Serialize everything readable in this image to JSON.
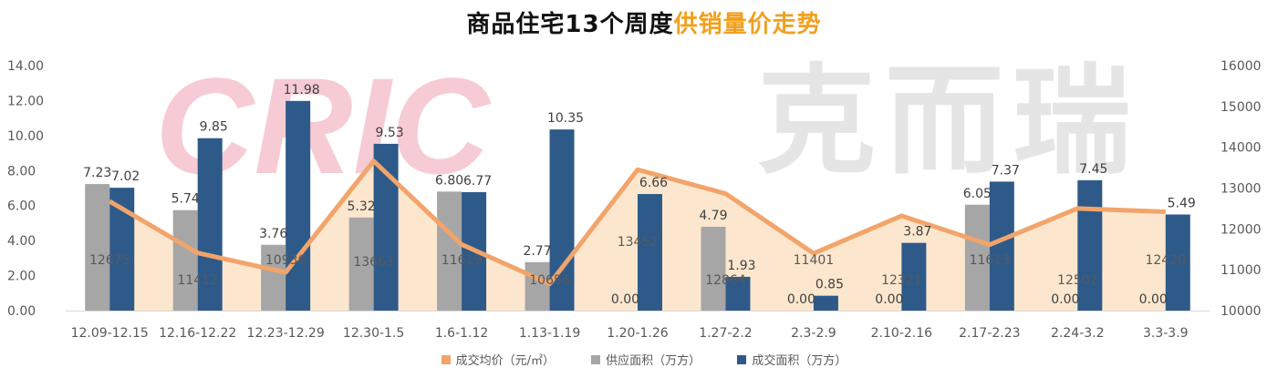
{
  "title": {
    "main": "商品住宅13个周度",
    "accent": "供销量价走势"
  },
  "watermark": {
    "logo_text": "CRIC",
    "brand_text": "克而瑞"
  },
  "legend": [
    {
      "label": "成交均价（元/㎡）",
      "color": "#f2a46a"
    },
    {
      "label": "供应面积（万方）",
      "color": "#a6a6a6"
    },
    {
      "label": "成交面积（万方）",
      "color": "#2e5a8a"
    }
  ],
  "chart_data": {
    "type": "bar",
    "categories": [
      "12.09-12.15",
      "12.16-12.22",
      "12.23-12.29",
      "12.30-1.5",
      "1.6-1.12",
      "1.13-1.19",
      "1.20-1.26",
      "1.27-2.2",
      "2.3-2.9",
      "2.10-2.16",
      "2.17-2.23",
      "2.24-3.2",
      "3.3-3.9"
    ],
    "y_left": {
      "min": 0,
      "max": 14,
      "step": 2,
      "tick_labels": [
        "0.00",
        "2.00",
        "4.00",
        "6.00",
        "8.00",
        "10.00",
        "12.00",
        "14.00"
      ]
    },
    "y_right": {
      "min": 10000,
      "max": 16000,
      "step": 1000,
      "tick_labels": [
        "10000",
        "11000",
        "12000",
        "13000",
        "14000",
        "15000",
        "16000"
      ]
    },
    "series": [
      {
        "name": "供应面积（万方）",
        "axis": "left",
        "kind": "bar",
        "color": "#a6a6a6",
        "values": [
          7.23,
          5.74,
          3.76,
          5.32,
          6.8,
          2.77,
          0.0,
          4.79,
          0.0,
          0.0,
          6.05,
          0.0,
          0.0
        ],
        "labels": [
          "7.23",
          "5.74",
          "3.76",
          "5.32",
          "6.80",
          "2.77",
          "0.00",
          "4.79",
          "0.00",
          "0.00",
          "6.05",
          "0.00",
          "0.00"
        ]
      },
      {
        "name": "成交面积（万方）",
        "axis": "left",
        "kind": "bar",
        "color": "#2e5a8a",
        "values": [
          7.02,
          9.85,
          11.98,
          9.53,
          6.77,
          10.35,
          6.66,
          1.93,
          0.85,
          3.87,
          7.37,
          7.45,
          5.49
        ],
        "labels": [
          "7.02",
          "9.85",
          "11.98",
          "9.53",
          "6.77",
          "10.35",
          "6.66",
          "1.93",
          "0.85",
          "3.87",
          "7.37",
          "7.45",
          "5.49"
        ]
      },
      {
        "name": "成交均价（元/㎡）",
        "axis": "right",
        "kind": "area",
        "color": "#f2a46a",
        "values": [
          12675,
          11412,
          10936,
          13663,
          11619,
          10656,
          13452,
          12864,
          11401,
          12321,
          11613,
          12502,
          12420
        ],
        "labels": [
          "12675",
          "11412",
          "10936",
          "13663",
          "11619",
          "10656",
          "13452",
          "12864",
          "11401",
          "12321",
          "11613",
          "12502",
          "12420"
        ]
      }
    ]
  }
}
